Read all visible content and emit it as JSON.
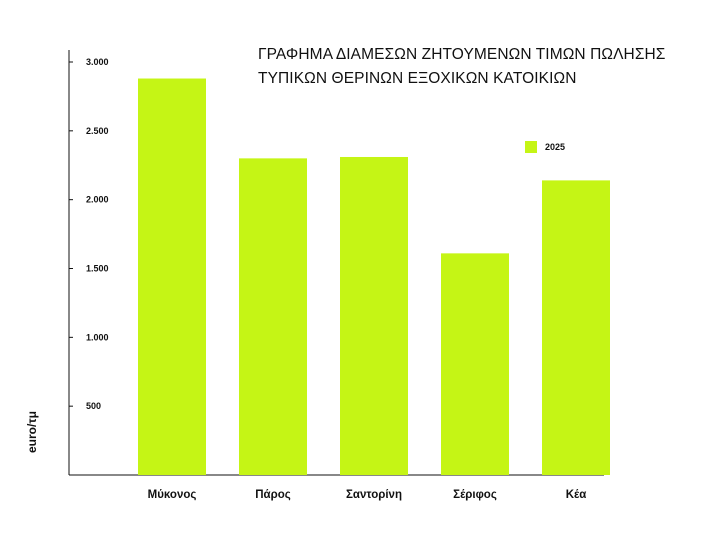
{
  "chart_data": {
    "type": "bar",
    "title_lines": [
      "ΓΡΑΦΗΜΑ ΔΙΑΜΕΣΩΝ ΖΗΤΟΥΜΕΝΩΝ ΤΙΜΩΝ ΠΩΛΗΣΗΣ",
      "ΤΥΠΙΚΩΝ ΘΕΡΙΝΩΝ ΕΞΟΧΙΚΩΝ ΚΑΤΟΙΚΙΩΝ"
    ],
    "ylabel": "euro/τμ",
    "categories": [
      "Μύκονος",
      "Πάρος",
      "Σαντορίνη",
      "Σέριφος",
      "Κέα"
    ],
    "series": [
      {
        "name": "2025",
        "values": [
          2880,
          2300,
          2310,
          1610,
          2140
        ],
        "color": "#c5f515"
      }
    ],
    "ylim": [
      0,
      3000
    ],
    "yticks": [
      500,
      1000,
      1500,
      2000,
      2500,
      3000
    ],
    "ytick_labels": [
      "500",
      "1.000",
      "1.500",
      "2.000",
      "2.500",
      "3.000"
    ],
    "legend_position": "top-right",
    "grid": false
  }
}
